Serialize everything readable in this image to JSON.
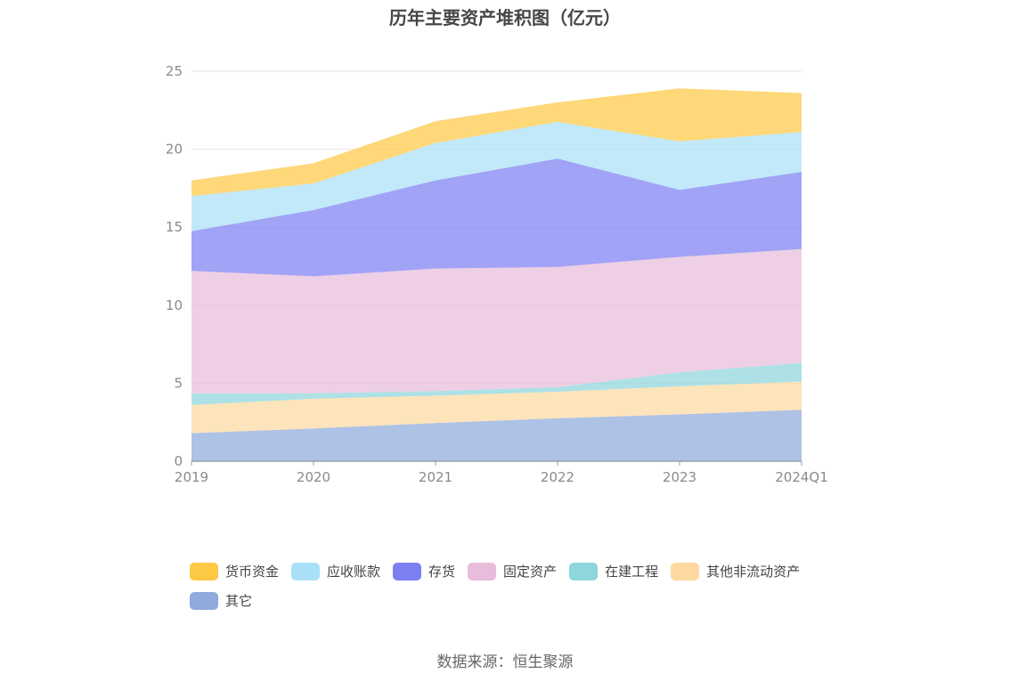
{
  "title": "历年主要资产堆积图（亿元）",
  "source": "数据来源：恒生聚源",
  "chart_data": {
    "type": "area",
    "stacked": true,
    "x": [
      "2019",
      "2020",
      "2021",
      "2022",
      "2023",
      "2024Q1"
    ],
    "ylim": [
      0,
      25
    ],
    "yticks": [
      "0",
      "5",
      "10",
      "15",
      "20",
      "25"
    ],
    "grid": true,
    "legend_position": "bottom",
    "series": [
      {
        "name": "其它",
        "color": "#8faadc",
        "values": [
          1.8,
          2.1,
          2.45,
          2.75,
          3.0,
          3.3
        ]
      },
      {
        "name": "其他非流动资产",
        "color": "#fdd9a0",
        "values": [
          1.8,
          1.9,
          1.75,
          1.7,
          1.8,
          1.8
        ]
      },
      {
        "name": "在建工程",
        "color": "#8dd6db",
        "values": [
          0.75,
          0.35,
          0.3,
          0.3,
          0.9,
          1.2
        ]
      },
      {
        "name": "固定资产",
        "color": "#e8bcdb",
        "values": [
          7.85,
          7.5,
          7.85,
          7.7,
          7.4,
          7.3
        ]
      },
      {
        "name": "存货",
        "color": "#7d80f2",
        "values": [
          2.55,
          4.25,
          5.65,
          6.95,
          4.3,
          4.95
        ]
      },
      {
        "name": "应收账款",
        "color": "#a9e0f8",
        "values": [
          2.25,
          1.7,
          2.4,
          2.35,
          3.1,
          2.55
        ]
      },
      {
        "name": "货币资金",
        "color": "#fdc945",
        "values": [
          1.0,
          1.3,
          1.4,
          1.25,
          3.4,
          2.5
        ]
      }
    ],
    "legend_order": [
      "货币资金",
      "应收账款",
      "存货",
      "固定资产",
      "在建工程",
      "其他非流动资产",
      "其它"
    ]
  }
}
